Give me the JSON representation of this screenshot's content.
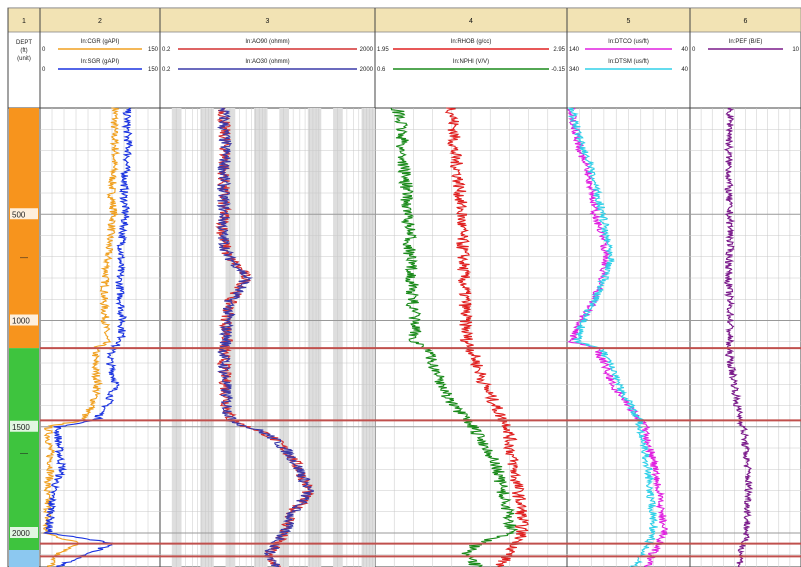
{
  "log": {
    "track_numbers": [
      "1",
      "2",
      "3",
      "4",
      "5",
      "6"
    ],
    "depth_header": {
      "line1": "DEPT",
      "line2": "(ft)",
      "line3": "(unit)"
    },
    "depth_labels": [
      {
        "depth": 500,
        "text": "500"
      },
      {
        "depth": 1000,
        "text": "1000"
      },
      {
        "depth": 1500,
        "text": "1500"
      },
      {
        "depth": 2000,
        "text": "2000"
      }
    ],
    "zone_marks": [
      {
        "depth": 700,
        "text": "—"
      },
      {
        "depth": 1620,
        "text": "—"
      }
    ],
    "colors": {
      "header_band": "#f2e3b4",
      "grid": "#c8c8c8",
      "boundary": "#c0504d",
      "zone_orange": "#f7941d",
      "zone_green": "#3ec43e",
      "zone_blue": "#8cc8f0",
      "shading": "#dedede"
    }
  },
  "chart_data": {
    "type": "line",
    "depth_range": [
      0,
      2160
    ],
    "zones": [
      {
        "from": 0,
        "to": 1130,
        "color": "#f7941d"
      },
      {
        "from": 1130,
        "to": 2080,
        "color": "#3ec43e"
      },
      {
        "from": 2080,
        "to": 2160,
        "color": "#8cc8f0"
      }
    ],
    "boundaries": [
      1130,
      1470,
      2050,
      2110
    ],
    "tracks": [
      {
        "id": 2,
        "curves": [
          {
            "name": "In:CGR (gAPI)",
            "color": "#f0a020",
            "min": "0",
            "max": "150",
            "scale": "lin",
            "xlim": [
              0,
              150
            ],
            "depth": [
              0,
              100,
              200,
              300,
              400,
              500,
              600,
              700,
              800,
              900,
              1000,
              1100,
              1130,
              1200,
              1300,
              1400,
              1470,
              1500,
              1600,
              1700,
              1800,
              1900,
              2000,
              2050,
              2100,
              2160
            ],
            "values": [
              95,
              93,
              95,
              92,
              90,
              93,
              88,
              85,
              82,
              80,
              82,
              83,
              70,
              68,
              72,
              66,
              50,
              8,
              10,
              12,
              6,
              8,
              4,
              50,
              20,
              10
            ]
          },
          {
            "name": "In:SGR (gAPI)",
            "color": "#1a33e0",
            "min": "0",
            "max": "150",
            "scale": "lin",
            "xlim": [
              0,
              150
            ],
            "depth": [
              0,
              100,
              200,
              300,
              400,
              500,
              600,
              700,
              800,
              900,
              1000,
              1100,
              1130,
              1200,
              1300,
              1400,
              1470,
              1500,
              1600,
              1700,
              1800,
              1900,
              2000,
              2050,
              2100,
              2160
            ],
            "values": [
              110,
              110,
              112,
              108,
              106,
              108,
              104,
              102,
              100,
              102,
              104,
              103,
              90,
              88,
              96,
              84,
              70,
              20,
              22,
              26,
              14,
              12,
              8,
              95,
              55,
              20
            ]
          }
        ]
      },
      {
        "id": 3,
        "curves": [
          {
            "name": "In:AO90 (ohmm)",
            "color": "#d43030",
            "min": "0.2",
            "max": "2000",
            "scale": "log",
            "xlim": [
              0.2,
              2000
            ],
            "depth": [
              0,
              100,
              200,
              300,
              400,
              500,
              600,
              700,
              800,
              900,
              1000,
              1100,
              1130,
              1200,
              1300,
              1400,
              1470,
              1500,
              1600,
              1700,
              1800,
              1900,
              2000,
              2050,
              2100,
              2160
            ],
            "values": [
              3,
              3,
              3.2,
              3,
              2.9,
              3,
              2.8,
              3.5,
              8,
              4,
              3.4,
              3.3,
              3,
              3,
              3.2,
              3.4,
              4,
              8,
              40,
              80,
              120,
              60,
              40,
              30,
              20,
              30
            ]
          },
          {
            "name": "In:AO30 (ohmm)",
            "color": "#3a3aa8",
            "min": "0.2",
            "max": "2000",
            "scale": "log",
            "xlim": [
              0.2,
              2000
            ],
            "depth": [
              0,
              100,
              200,
              300,
              400,
              500,
              600,
              700,
              800,
              900,
              1000,
              1100,
              1130,
              1200,
              1300,
              1400,
              1470,
              1500,
              1600,
              1700,
              1800,
              1900,
              2000,
              2050,
              2100,
              2160
            ],
            "values": [
              3,
              3,
              3.2,
              3,
              2.9,
              3,
              2.8,
              3.5,
              8,
              4,
              3.4,
              3.3,
              3,
              3,
              3.2,
              3.4,
              4,
              8,
              40,
              80,
              120,
              60,
              40,
              30,
              20,
              30
            ]
          }
        ]
      },
      {
        "id": 4,
        "curves": [
          {
            "name": "In:RHOB (g/cc)",
            "color": "#e02020",
            "min": "1.95",
            "max": "2.95",
            "scale": "lin",
            "xlim": [
              1.95,
              2.95
            ],
            "depth": [
              0,
              100,
              200,
              300,
              400,
              500,
              600,
              700,
              800,
              900,
              1000,
              1100,
              1130,
              1200,
              1300,
              1400,
              1470,
              1500,
              1600,
              1700,
              1800,
              1900,
              2000,
              2050,
              2100,
              2160
            ],
            "values": [
              2.35,
              2.36,
              2.36,
              2.38,
              2.39,
              2.4,
              2.4,
              2.41,
              2.41,
              2.42,
              2.42,
              2.43,
              2.45,
              2.48,
              2.52,
              2.58,
              2.62,
              2.65,
              2.66,
              2.68,
              2.7,
              2.72,
              2.72,
              2.7,
              2.65,
              2.6
            ]
          },
          {
            "name": "In:NPHI (V/V)",
            "color": "#1a8a1a",
            "min": "0.6",
            "max": "-0.15",
            "scale": "lin",
            "xlim": [
              0.6,
              -0.15
            ],
            "depth": [
              0,
              100,
              200,
              300,
              400,
              500,
              600,
              700,
              800,
              900,
              1000,
              1100,
              1130,
              1200,
              1300,
              1400,
              1470,
              1500,
              1600,
              1700,
              1800,
              1900,
              2000,
              2050,
              2100,
              2160
            ],
            "values": [
              0.52,
              0.5,
              0.5,
              0.49,
              0.48,
              0.48,
              0.47,
              0.47,
              0.46,
              0.46,
              0.45,
              0.45,
              0.4,
              0.38,
              0.34,
              0.3,
              0.24,
              0.22,
              0.16,
              0.12,
              0.1,
              0.08,
              0.06,
              0.2,
              0.25,
              0.2
            ]
          }
        ]
      },
      {
        "id": 5,
        "curves": [
          {
            "name": "In:DTCO (us/ft)",
            "color": "#e020e0",
            "min": "140",
            "max": "40",
            "scale": "lin",
            "xlim": [
              140,
              40
            ],
            "depth": [
              0,
              100,
              200,
              300,
              400,
              500,
              600,
              700,
              800,
              900,
              1000,
              1100,
              1130,
              1200,
              1300,
              1400,
              1470,
              1500,
              1600,
              1700,
              1800,
              1900,
              2000,
              2050,
              2100,
              2160
            ],
            "values": [
              138,
              135,
              130,
              125,
              120,
              118,
              112,
              108,
              112,
              118,
              130,
              138,
              118,
              110,
              104,
              90,
              80,
              76,
              72,
              68,
              65,
              62,
              60,
              64,
              70,
              75
            ]
          },
          {
            "name": "In:DTSM (us/ft)",
            "color": "#30d0e8",
            "min": "340",
            "max": "40",
            "scale": "lin",
            "xlim": [
              340,
              40
            ],
            "depth": [
              0,
              100,
              200,
              300,
              400,
              500,
              600,
              700,
              800,
              900,
              1000,
              1100,
              1130,
              1200,
              1300,
              1400,
              1470,
              1500,
              1600,
              1700,
              1800,
              1900,
              2000,
              2050,
              2100,
              2160
            ],
            "values": [
              335,
              320,
              300,
              285,
              270,
              255,
              245,
              230,
              250,
              275,
              305,
              320,
              260,
              240,
              215,
              185,
              165,
              160,
              150,
              140,
              135,
              130,
              125,
              140,
              160,
              175
            ]
          }
        ]
      },
      {
        "id": 6,
        "curves": [
          {
            "name": "In:PEF (B/E)",
            "color": "#7a1a8a",
            "min": "0",
            "max": "10",
            "scale": "lin",
            "xlim": [
              0,
              10
            ],
            "depth": [
              0,
              100,
              200,
              300,
              400,
              500,
              600,
              700,
              800,
              900,
              1000,
              1100,
              1130,
              1200,
              1300,
              1400,
              1470,
              1500,
              1600,
              1700,
              1800,
              1900,
              2000,
              2050,
              2100,
              2160
            ],
            "values": [
              3.5,
              3.6,
              3.4,
              3.5,
              3.4,
              3.5,
              3.6,
              3.5,
              3.4,
              3.5,
              3.6,
              3.5,
              3.4,
              3.6,
              4.0,
              4.2,
              4.6,
              4.8,
              5.0,
              5.2,
              5.3,
              5.2,
              5.1,
              4.8,
              4.6,
              4.5
            ]
          }
        ]
      }
    ]
  }
}
